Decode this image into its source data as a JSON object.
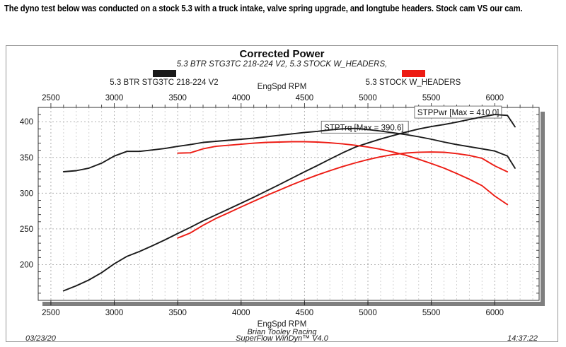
{
  "page": {
    "headline": "The dyno test below was conducted on a stock 5.3 with a truck intake, valve spring upgrade, and longtube headers. Stock cam VS our cam."
  },
  "report": {
    "footer": {
      "date": "03/23/20",
      "org": "Brian Tooley Racing",
      "software": "SuperFlow WinDyn™ V4.0",
      "time": "14:37:22"
    }
  },
  "chart_data": {
    "type": "line",
    "title": "Corrected Power",
    "subtitle": "5.3 BTR STG3TC 218-224 V2, 5.3 STOCK W_HEADERS,",
    "xlabel_top": "EngSpd RPM",
    "xlabel_bottom": "EngSpd RPM",
    "xlim": [
      2400,
      6350
    ],
    "ylim": [
      150,
      420
    ],
    "xticks_major": [
      2500,
      3000,
      3500,
      4000,
      4500,
      5000,
      5500,
      6000
    ],
    "xtick_minor_step": 100,
    "yticks_labeled": [
      200,
      250,
      300,
      350,
      400
    ],
    "ytick_major_step": 50,
    "ytick_minor_step": 10,
    "grid": "dashed",
    "legend_position": "top",
    "colors": {
      "black_series": "#1a1a1a",
      "red_series": "#ed1c14",
      "grid_major": "#b0b0b0",
      "grid_minor": "#d2d2d2",
      "shadow": "#7f7f7f"
    },
    "legend": [
      {
        "label": "5.3 BTR STG3TC 218-224 V2",
        "color": "#1a1a1a"
      },
      {
        "label": "5.3 STOCK W_HEADERS",
        "color": "#ed1c14"
      }
    ],
    "annotations": [
      {
        "text": "STPPwr [Max = 410.0]",
        "x": 5390,
        "y": 413
      },
      {
        "text": "STPTrq [Max = 390.6]",
        "x": 4655,
        "y": 392
      }
    ],
    "series": [
      {
        "name": "STPTrq 5.3 BTR STG3TC 218-224 V2",
        "color": "#1a1a1a",
        "x": [
          2600,
          2700,
          2800,
          2900,
          3000,
          3100,
          3200,
          3300,
          3400,
          3500,
          3600,
          3700,
          3800,
          3900,
          4000,
          4100,
          4200,
          4300,
          4400,
          4500,
          4600,
          4700,
          4800,
          4900,
          5000,
          5100,
          5200,
          5300,
          5400,
          5500,
          5600,
          5700,
          5800,
          5900,
          6000,
          6100,
          6160
        ],
        "values": [
          330,
          331.5,
          335,
          342,
          352,
          358.5,
          358.5,
          360.5,
          362.5,
          365.5,
          368,
          371,
          372.5,
          374,
          375.5,
          377,
          379,
          381,
          383,
          385,
          386.5,
          388.5,
          390,
          390.6,
          389,
          387,
          384.5,
          382,
          379,
          375.5,
          371.5,
          368,
          365,
          362,
          359,
          352,
          335
        ]
      },
      {
        "name": "STPPwr 5.3 BTR STG3TC 218-224 V2",
        "color": "#1a1a1a",
        "x": [
          2600,
          2700,
          2800,
          2900,
          3000,
          3100,
          3200,
          3300,
          3400,
          3500,
          3600,
          3700,
          3800,
          3900,
          4000,
          4100,
          4200,
          4300,
          4400,
          4500,
          4600,
          4700,
          4800,
          4900,
          5000,
          5100,
          5200,
          5300,
          5400,
          5500,
          5600,
          5700,
          5800,
          5900,
          6000,
          6100,
          6160
        ],
        "values": [
          163.4,
          170.4,
          178.6,
          188.8,
          201.1,
          211.6,
          218.4,
          226.5,
          234.7,
          243.6,
          252.2,
          261.3,
          269.5,
          277.7,
          286,
          294.3,
          303.1,
          311.9,
          320.9,
          329.9,
          338.5,
          347.6,
          356.4,
          364.4,
          370.3,
          375.8,
          380.7,
          385.5,
          389.7,
          393.2,
          396.1,
          399.4,
          403.1,
          406.7,
          410,
          408.8,
          392.9
        ]
      },
      {
        "name": "STPTrq 5.3 STOCK W_HEADERS",
        "color": "#ed1c14",
        "x": [
          3500,
          3600,
          3700,
          3800,
          3900,
          4000,
          4100,
          4200,
          4300,
          4400,
          4500,
          4600,
          4700,
          4800,
          4900,
          5000,
          5100,
          5200,
          5300,
          5400,
          5500,
          5600,
          5700,
          5800,
          5900,
          6000,
          6100
        ],
        "values": [
          356,
          356.5,
          362,
          365.5,
          367,
          368.5,
          370,
          371,
          371.5,
          372,
          372,
          371.5,
          370.5,
          369,
          367,
          364.5,
          361.5,
          357.5,
          353,
          347.5,
          341.5,
          335,
          327.5,
          319.5,
          310.5,
          296,
          284
        ]
      },
      {
        "name": "STPPwr 5.3 STOCK W_HEADERS",
        "color": "#ed1c14",
        "x": [
          3500,
          3600,
          3700,
          3800,
          3900,
          4000,
          4100,
          4200,
          4300,
          4400,
          4500,
          4600,
          4700,
          4800,
          4900,
          5000,
          5100,
          5200,
          5300,
          5400,
          5500,
          5600,
          5700,
          5800,
          5900,
          6000,
          6100
        ],
        "values": [
          237.2,
          244.4,
          255,
          264.4,
          272.5,
          280.7,
          288.8,
          296.7,
          304.2,
          311.7,
          318.7,
          325.4,
          331.5,
          337.2,
          342.4,
          347,
          351,
          354,
          356.2,
          357.3,
          357.6,
          357.2,
          355.4,
          352.8,
          348.8,
          338.2,
          329.9
        ]
      }
    ]
  }
}
